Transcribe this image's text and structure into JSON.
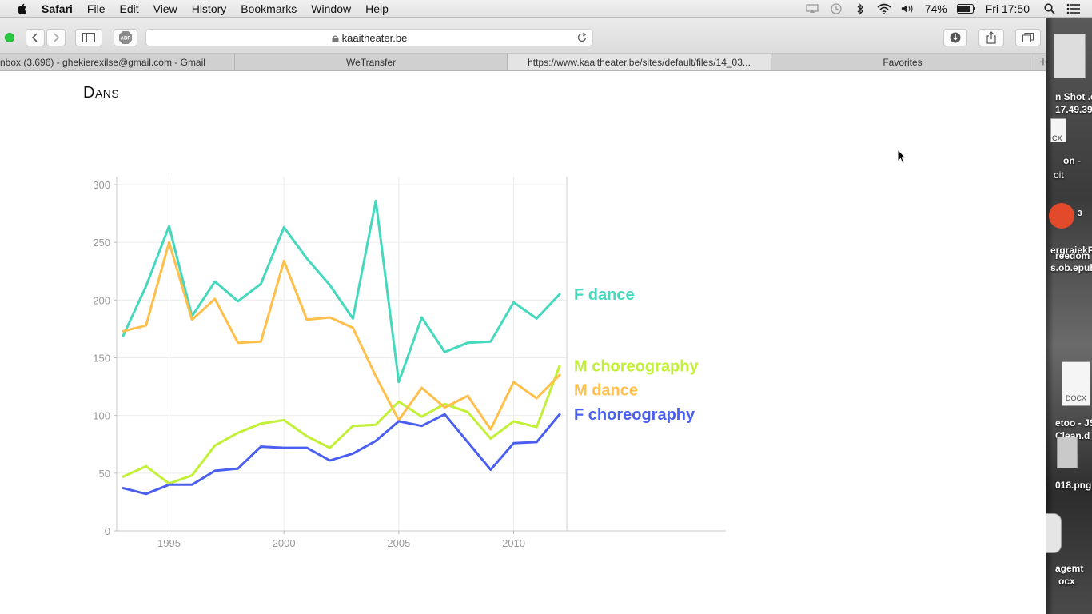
{
  "menubar": {
    "app_name": "Safari",
    "menus": [
      "File",
      "Edit",
      "View",
      "History",
      "Bookmarks",
      "Window",
      "Help"
    ],
    "battery_percent": "74%",
    "clock": "Fri 17:50",
    "status_icons": [
      "airplay-icon",
      "time-machine-icon",
      "bluetooth-icon",
      "wifi-icon",
      "volume-icon",
      "battery-icon",
      "spotlight-icon",
      "notification-center-icon"
    ]
  },
  "browser": {
    "address": "kaaitheater.be",
    "toolbar_icons": [
      "back-icon",
      "forward-icon",
      "sidebar-icon",
      "adblock-icon",
      "reload-icon",
      "downloads-icon",
      "share-icon",
      "tabs-overview-icon"
    ],
    "adblock_label": "ABP",
    "tabs": [
      {
        "label": "nbox (3.696) - ghekierexilse@gmail.com - Gmail"
      },
      {
        "label": "WeTransfer"
      },
      {
        "label": "https://www.kaaitheater.be/sites/default/files/14_03..."
      },
      {
        "label": "Favorites"
      }
    ],
    "add_tab": "+"
  },
  "page": {
    "title": "Dans"
  },
  "chart_data": {
    "type": "line",
    "title": "",
    "xlabel": "",
    "ylabel": "",
    "x": [
      1993,
      1994,
      1995,
      1996,
      1997,
      1998,
      1999,
      2000,
      2001,
      2002,
      2003,
      2004,
      2005,
      2006,
      2007,
      2008,
      2009,
      2010,
      2011,
      2012
    ],
    "xticks": [
      1995,
      2000,
      2005,
      2010
    ],
    "yticks": [
      0,
      50,
      100,
      150,
      200,
      250,
      300
    ],
    "xlim": [
      1993,
      2012
    ],
    "ylim": [
      0,
      300
    ],
    "grid": true,
    "legend": "end-of-line labels",
    "series": [
      {
        "name": "F dance",
        "color": "#46d8bd",
        "values": [
          169,
          212,
          264,
          186,
          216,
          199,
          214,
          263,
          236,
          213,
          184,
          286,
          129,
          185,
          155,
          163,
          164,
          198,
          184,
          205
        ]
      },
      {
        "name": "M choreography",
        "color": "#c2f036",
        "values": [
          47,
          56,
          41,
          48,
          74,
          85,
          93,
          96,
          82,
          72,
          91,
          92,
          112,
          99,
          110,
          103,
          80,
          95,
          90,
          143
        ]
      },
      {
        "name": "M dance",
        "color": "#ffbf4a",
        "values": [
          173,
          178,
          250,
          183,
          201,
          163,
          164,
          234,
          183,
          185,
          176,
          134,
          96,
          124,
          107,
          117,
          88,
          129,
          115,
          135
        ]
      },
      {
        "name": "F choreography",
        "color": "#4a5ef0",
        "values": [
          37,
          32,
          40,
          40,
          52,
          54,
          73,
          72,
          72,
          61,
          67,
          78,
          95,
          91,
          101,
          77,
          53,
          76,
          77,
          101
        ]
      }
    ]
  },
  "desktop": {
    "labels": [
      "n Shot .c",
      "17.49.39",
      "CX",
      "on -",
      "oit",
      "3",
      "ergraiekP",
      "reedom",
      "s.ob.epub",
      "DOCX",
      "etoo - JS",
      "Clean.d",
      "018.png",
      "agemt",
      "ocx"
    ]
  }
}
